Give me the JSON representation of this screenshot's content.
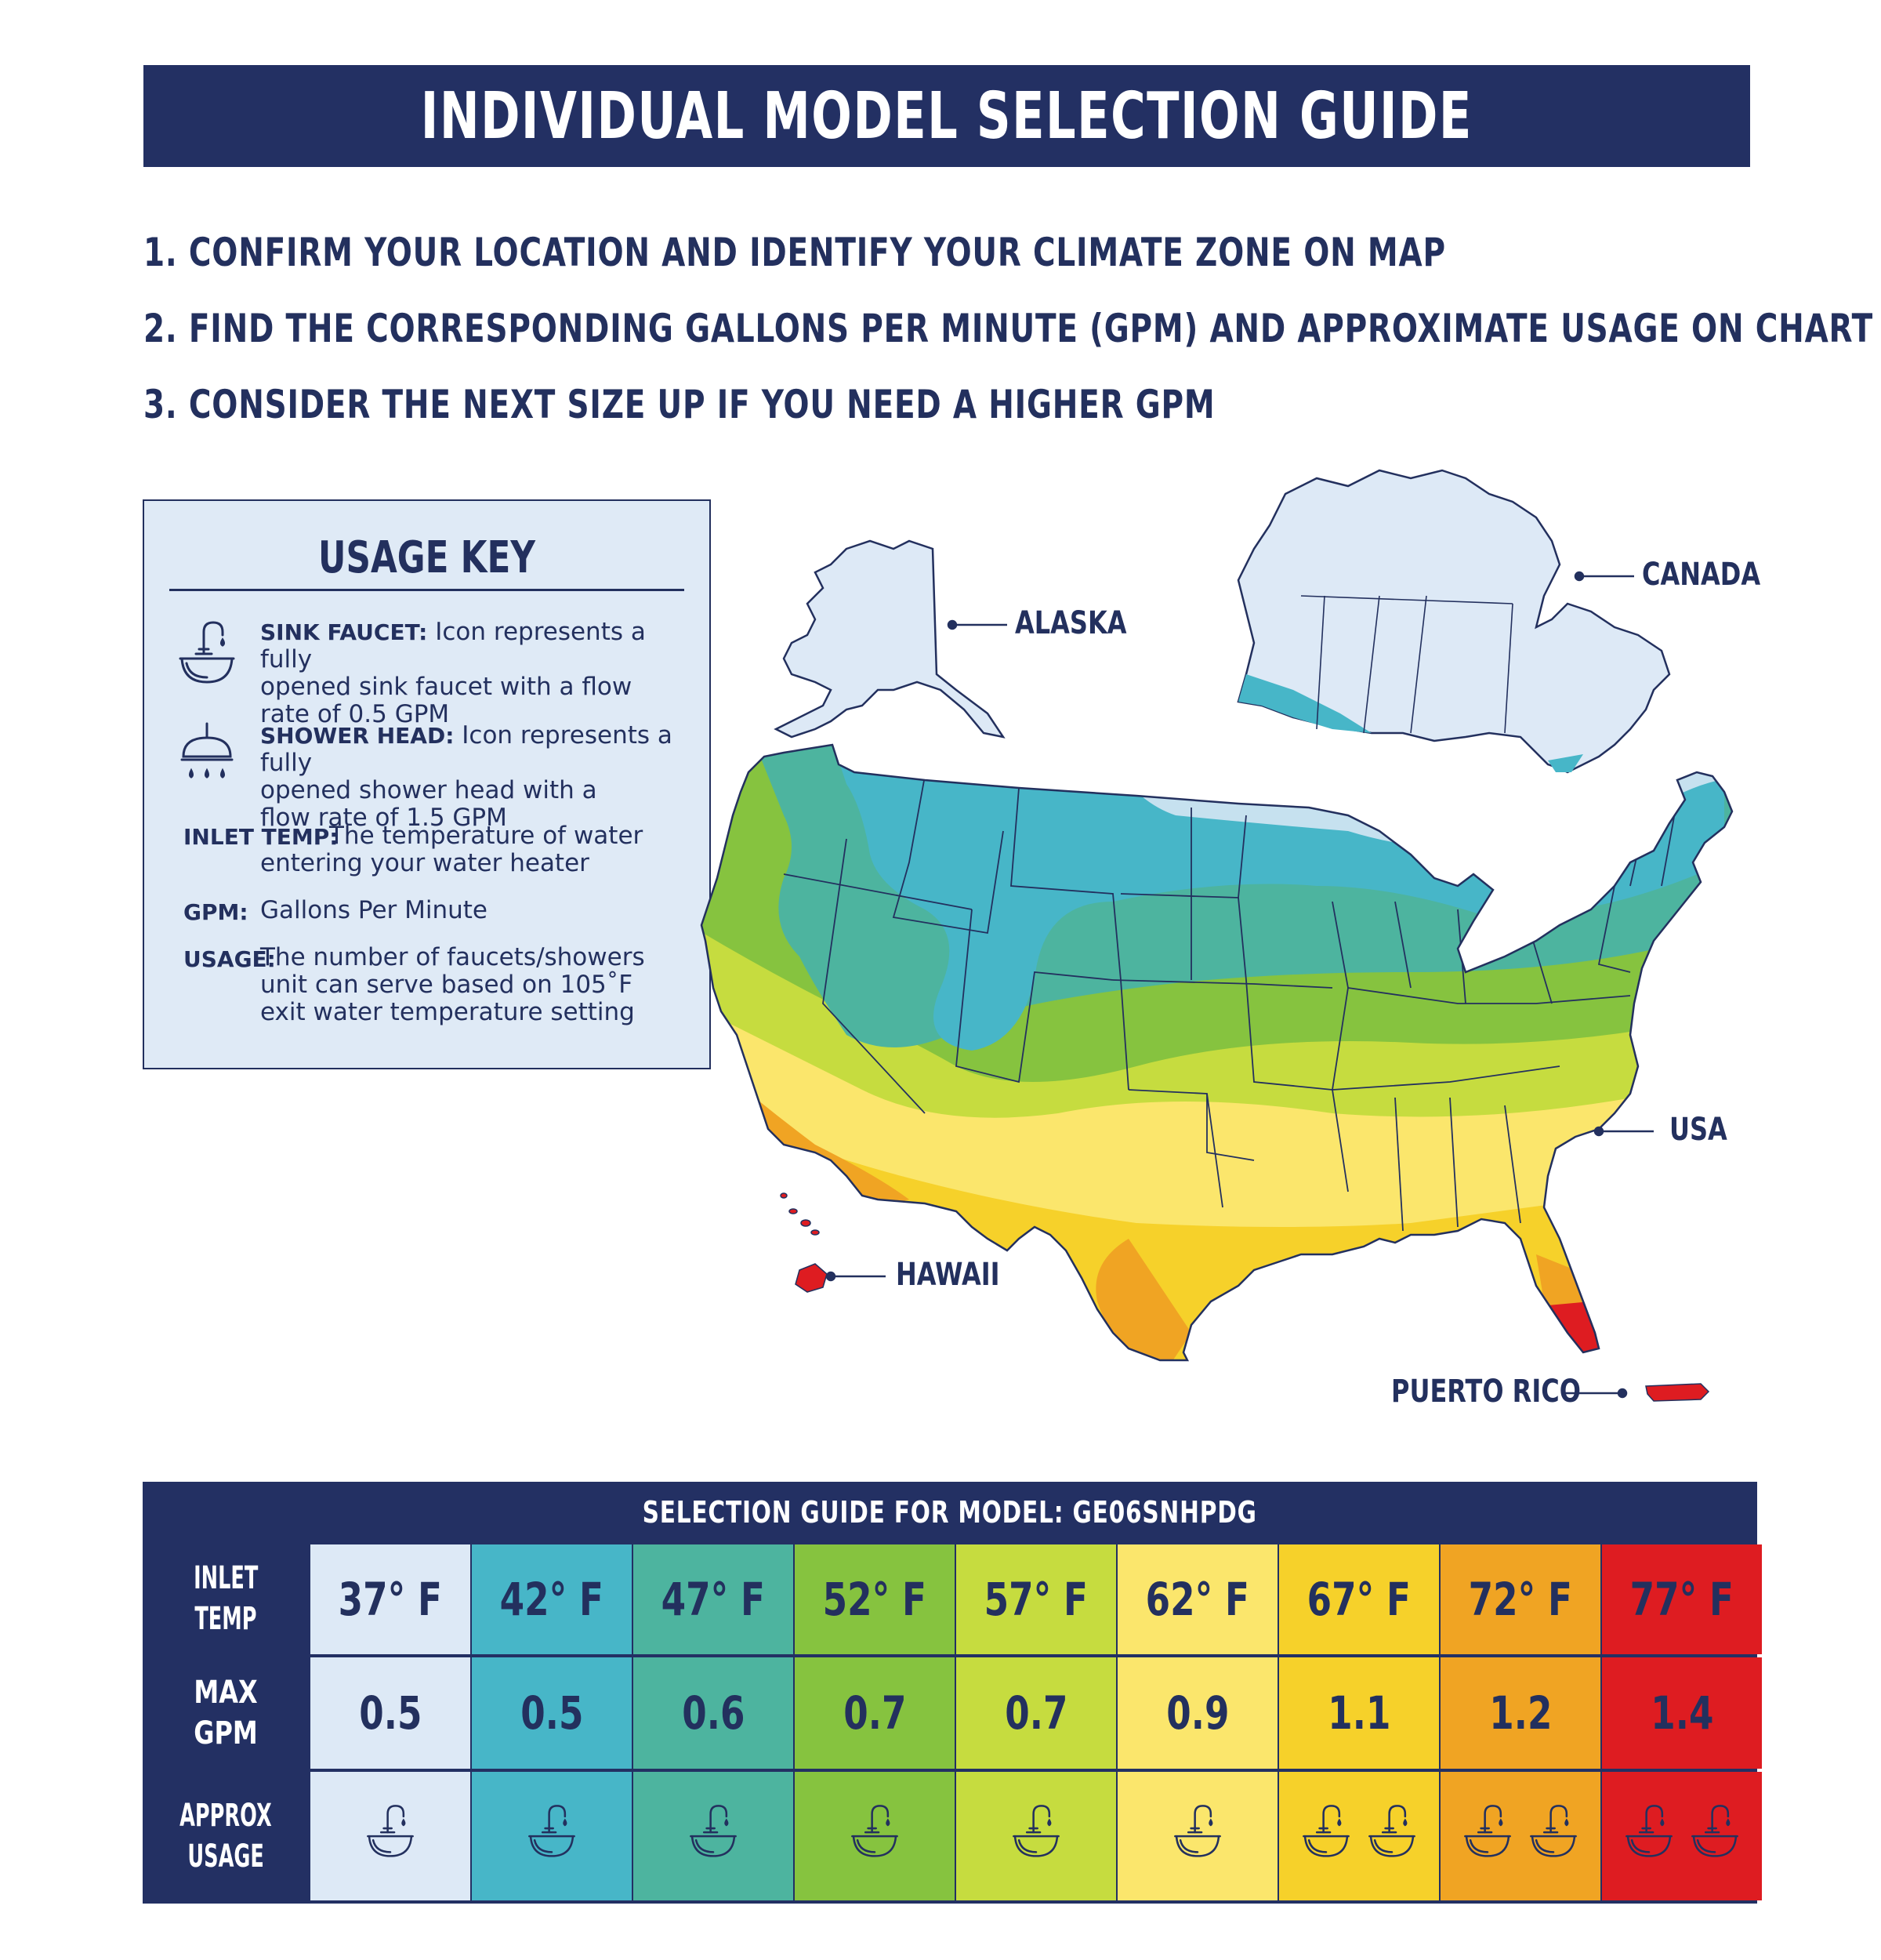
{
  "title": "INDIVIDUAL MODEL SELECTION GUIDE",
  "steps": [
    "1. CONFIRM YOUR LOCATION AND IDENTIFY YOUR CLIMATE ZONE ON MAP",
    "2. FIND THE CORRESPONDING GALLONS PER MINUTE (GPM) AND APPROXIMATE USAGE ON CHART",
    "3. CONSIDER THE NEXT SIZE UP IF YOU NEED A HIGHER GPM"
  ],
  "usage_key": {
    "title": "USAGE KEY",
    "sink_term": "SINK FAUCET:",
    "sink_text_1": "Icon represents a fully",
    "sink_text_2": "opened sink faucet with a flow",
    "sink_text_3": "rate of 0.5 GPM",
    "shower_term": "SHOWER HEAD:",
    "shower_text_1": "Icon represents a fully",
    "shower_text_2": "opened shower head with a",
    "shower_text_3": "flow rate of 1.5 GPM",
    "inlet_term": "INLET TEMP:",
    "inlet_text_1": "The temperature of water",
    "inlet_text_2": "entering your water heater",
    "gpm_term": "GPM:",
    "gpm_text": "Gallons Per Minute",
    "usage_term": "USAGE:",
    "usage_text_1": "The number of faucets/showers",
    "usage_text_2": "unit can serve based on 105˚F",
    "usage_text_3": "exit water temperature setting"
  },
  "map_labels": {
    "alaska": "ALASKA",
    "canada": "CANADA",
    "usa": "USA",
    "hawaii": "HAWAII",
    "puerto_rico": "PUERTO RICO"
  },
  "guide": {
    "title": "SELECTION GUIDE FOR MODEL: GE06SNHPDG",
    "row_labels": {
      "inlet_1": "INLET",
      "inlet_2": "TEMP",
      "gpm": "MAX GPM",
      "usage_1": "APPROX",
      "usage_2": "USAGE"
    },
    "temps": [
      "37° F",
      "42° F",
      "47° F",
      "52° F",
      "57° F",
      "62° F",
      "67° F",
      "72° F",
      "77° F"
    ],
    "gpm": [
      "0.5",
      "0.5",
      "0.6",
      "0.7",
      "0.7",
      "0.9",
      "1.1",
      "1.2",
      "1.4"
    ],
    "faucet_counts": [
      1,
      1,
      1,
      1,
      1,
      1,
      2,
      2,
      2
    ],
    "colors": [
      "#dde9f6",
      "#47b6c8",
      "#4db49f",
      "#86c33f",
      "#c6dc3f",
      "#fbe66c",
      "#f6d12a",
      "#f0a423",
      "#de1c21"
    ]
  },
  "zone_colors": {
    "z37": "#dde9f6",
    "z42": "#47b6c8",
    "z47": "#4db49f",
    "z52": "#86c33f",
    "z57": "#c6dc3f",
    "z62": "#fbe66c",
    "z67": "#f6d12a",
    "z72": "#f0a423",
    "z77": "#de1c21",
    "navy": "#233063"
  }
}
